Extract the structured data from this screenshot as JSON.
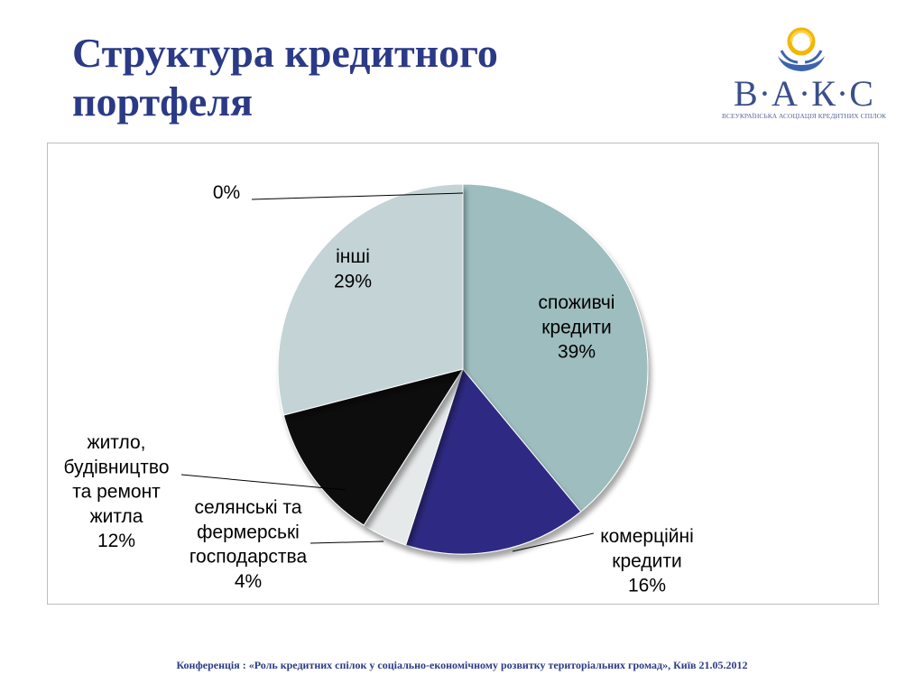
{
  "slide": {
    "title": "Структура кредитного портфеля",
    "footer": "Конференція : «Роль кредитних спілок у соціально-економічному розвитку територіальних громад», Київ 21.05.2012"
  },
  "logo": {
    "icon": "hands-holding-sun-icon",
    "name": "В·А·К·С",
    "tagline": "ВСЕУКРАЇНСЬКА АСОЦІАЦІЯ КРЕДИТНИХ СПІЛОК"
  },
  "chart_data": {
    "type": "pie",
    "title": "",
    "slices": [
      {
        "label": "споживчі кредити",
        "value": 39,
        "label_lines": [
          "споживчі",
          "кредити",
          "39%"
        ],
        "color": "#9dbdbf"
      },
      {
        "label": "комерційні кредити",
        "value": 16,
        "label_lines": [
          "комерційні",
          "кредити",
          "16%"
        ],
        "color": "#2e2c83"
      },
      {
        "label": "селянські та фермерські господарства",
        "value": 4,
        "label_lines": [
          "селянські та",
          "фермерські",
          "господарства",
          "4%"
        ],
        "color": "#e6e9ea"
      },
      {
        "label": "житло, будівництво та ремонт житла",
        "value": 12,
        "label_lines": [
          "житло,",
          "будівництво",
          "та ремонт",
          "житла",
          "12%"
        ],
        "color": "#0b0b0b"
      },
      {
        "label": "інші",
        "value": 29,
        "label_lines": [
          "інші",
          "29%"
        ],
        "color": "#c4d3d6"
      },
      {
        "label": "",
        "value": 0,
        "label_lines": [
          "0%"
        ],
        "color": "#c4d3d6"
      }
    ]
  }
}
